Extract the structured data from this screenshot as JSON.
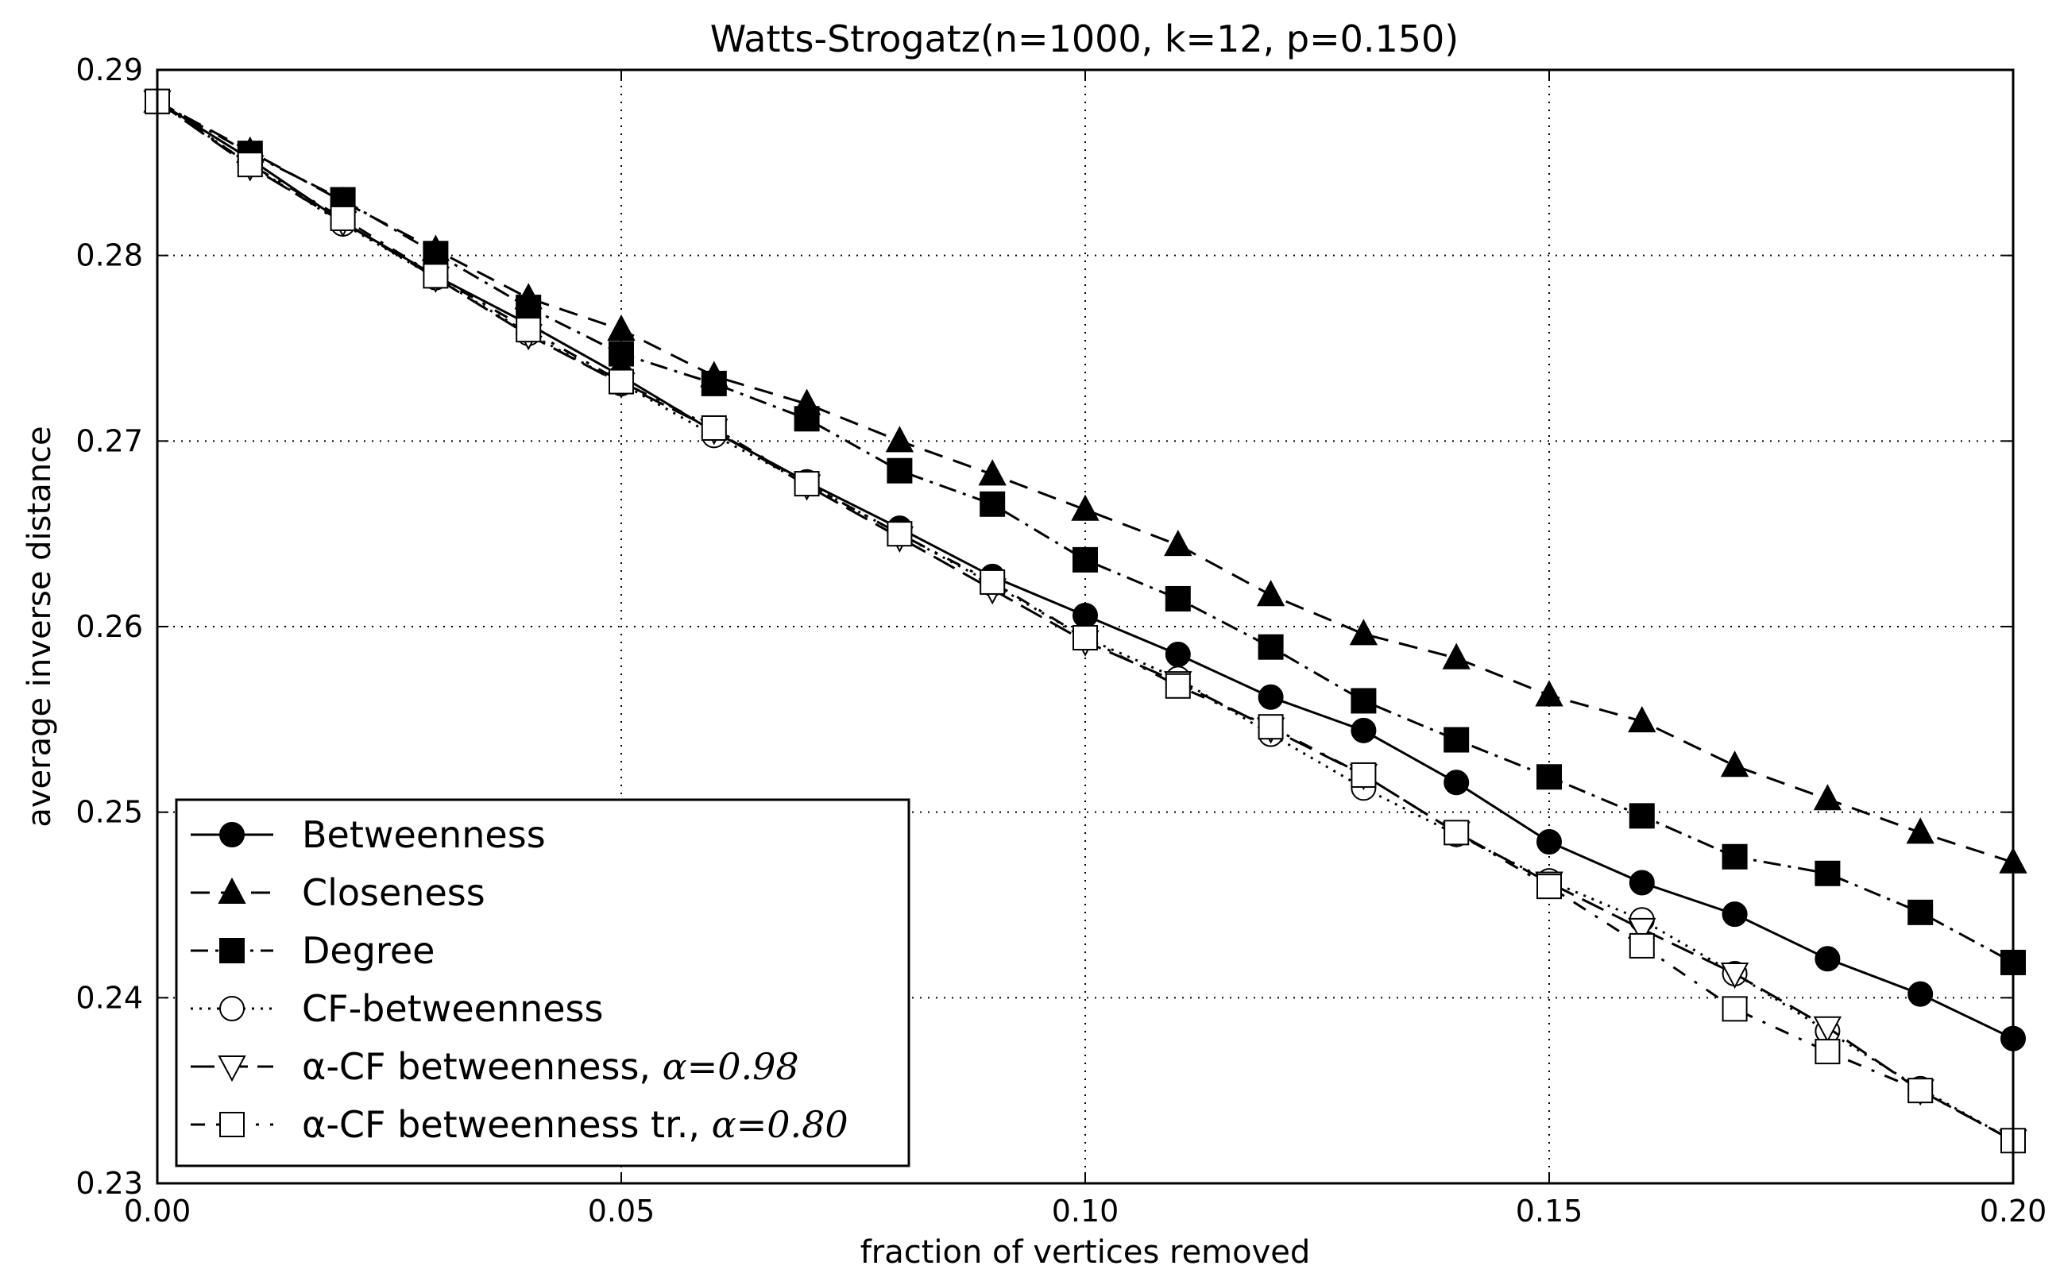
{
  "chart_data": {
    "type": "line",
    "title": "Watts-Strogatz(n=1000, k=12, p=0.150)",
    "xlabel": "fraction of vertices removed",
    "ylabel": "average inverse distance",
    "xlim": [
      0.0,
      0.2
    ],
    "ylim": [
      0.23,
      0.29
    ],
    "grid": true,
    "legend_position": "bottom-left",
    "x_ticks": [
      0.0,
      0.05,
      0.1,
      0.15,
      0.2
    ],
    "x_tick_labels": [
      "0.00",
      "0.05",
      "0.10",
      "0.15",
      "0.20"
    ],
    "y_ticks": [
      0.23,
      0.24,
      0.25,
      0.26,
      0.27,
      0.28,
      0.29
    ],
    "y_tick_labels": [
      "0.23",
      "0.24",
      "0.25",
      "0.26",
      "0.27",
      "0.28",
      "0.29"
    ],
    "x": [
      0.0,
      0.01,
      0.02,
      0.03,
      0.04,
      0.05,
      0.06,
      0.07,
      0.08,
      0.09,
      0.1,
      0.11,
      0.12,
      0.13,
      0.14,
      0.15,
      0.16,
      0.17,
      0.18,
      0.19,
      0.2
    ],
    "series": [
      {
        "name": "Betweenness",
        "name_suffix": "",
        "marker": "circle-filled",
        "line_style": "solid",
        "values": [
          0.2883,
          0.2852,
          0.2818,
          0.2789,
          0.2763,
          0.2735,
          0.2705,
          0.2678,
          0.2653,
          0.2627,
          0.2606,
          0.2585,
          0.2562,
          0.2544,
          0.2516,
          0.2484,
          0.2462,
          0.2445,
          0.2421,
          0.2402,
          0.2378
        ]
      },
      {
        "name": "Closeness",
        "name_suffix": "",
        "marker": "triangle-up-filled",
        "line_style": "dashed",
        "values": [
          0.2883,
          0.2856,
          0.2829,
          0.2803,
          0.2777,
          0.276,
          0.2735,
          0.272,
          0.27,
          0.2682,
          0.2663,
          0.2644,
          0.2617,
          0.2596,
          0.2583,
          0.2563,
          0.2549,
          0.2525,
          0.2507,
          0.2489,
          0.2473
        ]
      },
      {
        "name": "Degree",
        "name_suffix": "",
        "marker": "square-filled",
        "line_style": "dashdot",
        "values": [
          0.2883,
          0.2855,
          0.283,
          0.2801,
          0.2772,
          0.2747,
          0.2731,
          0.2712,
          0.2684,
          0.2666,
          0.2636,
          0.2615,
          0.2589,
          0.256,
          0.2539,
          0.2519,
          0.2498,
          0.2476,
          0.2467,
          0.2446,
          0.2419
        ]
      },
      {
        "name": "CF-betweenness",
        "name_suffix": "",
        "marker": "circle-open",
        "line_style": "dotted",
        "values": [
          0.2883,
          0.2849,
          0.2817,
          0.2788,
          0.2758,
          0.2731,
          0.2703,
          0.2677,
          0.265,
          0.2623,
          0.2594,
          0.2572,
          0.2542,
          0.2513,
          0.2488,
          0.2463,
          0.2442,
          0.2413,
          0.2382,
          0.2351,
          0.2323
        ]
      },
      {
        "name": "α-CF betweenness, ",
        "name_suffix": "α=0.98",
        "marker": "triangle-down-open",
        "line_style": "longdash",
        "values": [
          0.2883,
          0.2848,
          0.2818,
          0.2788,
          0.2757,
          0.2731,
          0.2706,
          0.2676,
          0.2648,
          0.262,
          0.2592,
          0.257,
          0.2545,
          0.252,
          0.2489,
          0.2462,
          0.2437,
          0.2413,
          0.2384,
          0.235,
          0.2323
        ]
      },
      {
        "name": "α-CF betweenness tr., ",
        "name_suffix": "α=0.80",
        "marker": "square-open",
        "line_style": "dashdot-loose",
        "values": [
          0.2883,
          0.2849,
          0.282,
          0.2789,
          0.276,
          0.2732,
          0.2707,
          0.2677,
          0.265,
          0.2624,
          0.2594,
          0.2568,
          0.2546,
          0.252,
          0.2489,
          0.246,
          0.2428,
          0.2394,
          0.2371,
          0.235,
          0.2323
        ]
      }
    ]
  }
}
